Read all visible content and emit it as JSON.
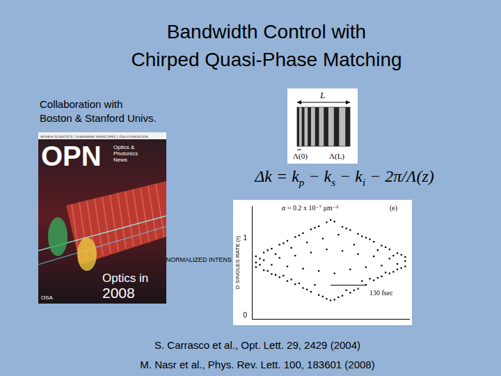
{
  "title": [
    "Bandwidth Control with",
    "Chirped Quasi-Phase Matching"
  ],
  "collaboration": [
    "Collaboration with",
    "Boston & Stanford Univs."
  ],
  "cover": {
    "top_line": "WOMEN SCIENTISTS | SUBMARINE PERISCOPES | OSA FOUNDATION",
    "masthead": "OPN",
    "subtitle": [
      "Optics &",
      "Photonics",
      "News"
    ],
    "headline": "Optics in",
    "year": "2008",
    "publisher": "OSA"
  },
  "diagram": {
    "length_label": "L",
    "start_label": "Λ(0)",
    "end_label": "Λ(L)"
  },
  "equation": [
    {
      "text": "Δk = k"
    },
    {
      "sub": "p"
    },
    {
      "text": " − k"
    },
    {
      "sub": "s"
    },
    {
      "text": " − k"
    },
    {
      "sub": "i"
    },
    {
      "text": " − 2π/Λ(z)"
    }
  ],
  "chart_data": {
    "type": "scatter",
    "x": [
      -0.95,
      -0.95,
      -0.95,
      -0.9,
      -0.9,
      -0.85,
      -0.85,
      -0.85,
      -0.8,
      -0.8,
      -0.75,
      -0.75,
      -0.75,
      -0.7,
      -0.7,
      -0.65,
      -0.65,
      -0.65,
      -0.6,
      -0.6,
      -0.55,
      -0.55,
      -0.55,
      -0.5,
      -0.5,
      -0.45,
      -0.45,
      -0.45,
      -0.4,
      -0.4,
      -0.35,
      -0.35,
      -0.35,
      -0.3,
      -0.3,
      -0.25,
      -0.25,
      -0.25,
      -0.2,
      -0.2,
      -0.15,
      -0.15,
      -0.15,
      -0.1,
      -0.1,
      -0.05,
      -0.05,
      -0.05,
      0,
      0,
      0.05,
      0.05,
      0.05,
      0.1,
      0.1,
      0.15,
      0.15,
      0.15,
      0.2,
      0.2,
      0.25,
      0.25,
      0.25,
      0.3,
      0.3,
      0.35,
      0.35,
      0.35,
      0.4,
      0.4,
      0.45,
      0.45,
      0.45,
      0.5,
      0.5,
      0.55,
      0.55,
      0.55,
      0.6,
      0.6,
      0.65,
      0.65,
      0.65,
      0.7,
      0.7,
      0.75,
      0.75,
      0.75,
      0.8,
      0.8,
      0.85,
      0.85,
      0.85,
      0.9,
      0.9,
      0.95,
      0.95,
      0.95
    ],
    "values": [
      0.77,
      0.69,
      0.63,
      0.74,
      0.66,
      0.82,
      0.72,
      0.59,
      0.85,
      0.58,
      0.87,
      0.66,
      0.54,
      0.8,
      0.53,
      0.92,
      0.75,
      0.5,
      0.94,
      0.52,
      0.97,
      0.64,
      0.45,
      0.88,
      0.47,
      1.02,
      0.78,
      0.41,
      1.04,
      0.42,
      1.07,
      0.61,
      0.36,
      0.95,
      0.34,
      1.12,
      0.82,
      0.31,
      1.14,
      0.4,
      1.16,
      0.58,
      0.27,
      1.0,
      0.25,
      1.21,
      0.86,
      0.22,
      1.24,
      0.2,
      1.22,
      0.55,
      0.21,
      1.05,
      0.24,
      1.15,
      0.84,
      0.26,
      1.13,
      0.33,
      1.11,
      0.6,
      0.3,
      0.92,
      0.33,
      1.06,
      0.8,
      0.35,
      1.03,
      0.45,
      1.01,
      0.63,
      0.4,
      0.99,
      0.48,
      0.96,
      0.77,
      0.46,
      0.85,
      0.49,
      0.91,
      0.65,
      0.51,
      0.89,
      0.56,
      0.86,
      0.74,
      0.55,
      0.78,
      0.57,
      0.81,
      0.67,
      0.6,
      0.79,
      0.62,
      0.76,
      0.71,
      0.64
    ],
    "color": "#000000",
    "marker": "square",
    "grid": false,
    "xlim": [
      -1,
      1
    ],
    "ylim": [
      -0.04,
      1.42
    ],
    "yticks": [
      0,
      1
    ],
    "tick_labels": "y",
    "ylabel": "D SINGLES RATE (τ)",
    "annotations": [
      "α = 0.2 x 10⁻⁷ μm⁻²",
      "(e)",
      "130 fsec"
    ],
    "overlay_label": "NORMALIZED INTENS"
  },
  "references": [
    "S. Carrasco et al., Opt. Lett. 29, 2429 (2004)",
    "M. Nasr et al., Phys. Rev. Lett. 100, 183601 (2008)"
  ]
}
